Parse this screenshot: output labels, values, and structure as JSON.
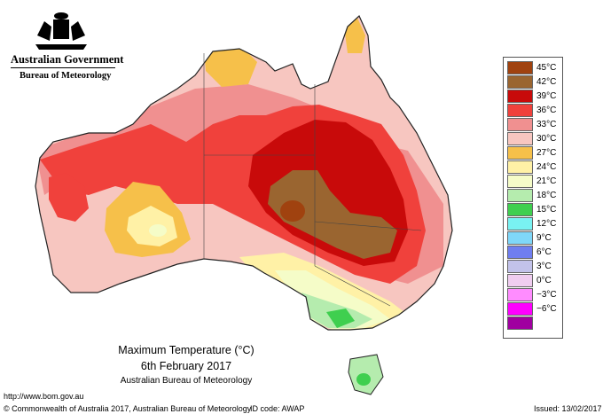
{
  "header": {
    "government": "Australian Government",
    "bureau": "Bureau of Meteorology"
  },
  "caption": {
    "title": "Maximum Temperature (°C)",
    "date": "6th February 2017",
    "source": "Australian Bureau of Meteorology"
  },
  "legend": {
    "items": [
      {
        "label": "45°C",
        "color": "#a0420f"
      },
      {
        "label": "42°C",
        "color": "#9a6530"
      },
      {
        "label": "39°C",
        "color": "#c80a0a"
      },
      {
        "label": "36°C",
        "color": "#f0413c"
      },
      {
        "label": "33°C",
        "color": "#f09090"
      },
      {
        "label": "30°C",
        "color": "#f7c6c0"
      },
      {
        "label": "27°C",
        "color": "#f6c04a"
      },
      {
        "label": "24°C",
        "color": "#fff1a6"
      },
      {
        "label": "21°C",
        "color": "#f5fcc8"
      },
      {
        "label": "18°C",
        "color": "#b5ecae"
      },
      {
        "label": "15°C",
        "color": "#3fcf4f"
      },
      {
        "label": "12°C",
        "color": "#79f2f2"
      },
      {
        "label": "9°C",
        "color": "#7fd7f9"
      },
      {
        "label": "6°C",
        "color": "#6f7ef0"
      },
      {
        "label": "3°C",
        "color": "#c2c2ea"
      },
      {
        "label": "0°C",
        "color": "#f0cdf0"
      },
      {
        "label": "−3°C",
        "color": "#ff8cff"
      },
      {
        "label": "−6°C",
        "color": "#ff00ff"
      }
    ],
    "extra_bottom_color": "#a000a0"
  },
  "footer": {
    "url": "http://www.bom.gov.au",
    "copyright": "© Commonwealth of Australia 2017, Australian Bureau of Meteorology",
    "id_code": "ID code: AWAP",
    "issued": "Issued: 13/02/2017"
  }
}
